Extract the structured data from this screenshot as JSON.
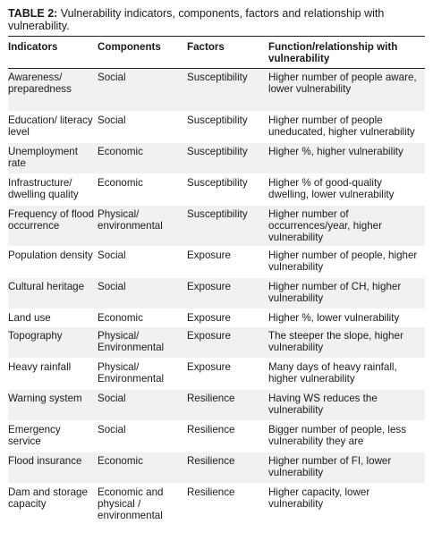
{
  "caption": {
    "label": "TABLE 2:",
    "text": " Vulnerability indicators, components, factors and relationship with vulnerability."
  },
  "headers": [
    "Indicators",
    "Components",
    "Factors",
    "Function/relationship with vulnerability"
  ],
  "rows": [
    {
      "indicator": "Awareness/ preparedness",
      "component": "Social",
      "factor": "Susceptibility",
      "relationship": "Higher number of people aware, lower vulnerability"
    },
    {
      "indicator": "Education/ literacy level",
      "component": "Social",
      "factor": "Susceptibility",
      "relationship": "Higher number of people uneducated, higher vulnerability"
    },
    {
      "indicator": "Unemployment rate",
      "component": "Economic",
      "factor": "Susceptibility",
      "relationship": "Higher %, higher vulnerability"
    },
    {
      "indicator": "Infrastructure/ dwelling quality",
      "component": "Economic",
      "factor": "Susceptibility",
      "relationship": "Higher % of good-quality dwelling, lower vulnerability"
    },
    {
      "indicator": "Frequency of flood occurrence",
      "component": "Physical/ environmental",
      "factor": "Susceptibility",
      "relationship": "Higher number of occurrences/year, higher vulnerability"
    },
    {
      "indicator": "Population density",
      "component": "Social",
      "factor": "Exposure",
      "relationship": "Higher number of people, higher vulnerability"
    },
    {
      "indicator": "Cultural heritage",
      "component": "Social",
      "factor": "Exposure",
      "relationship": "Higher number of CH, higher vulnerability"
    },
    {
      "indicator": "Land use",
      "component": "Economic",
      "factor": "Exposure",
      "relationship": "Higher %, lower vulnerability"
    },
    {
      "indicator": "Topography",
      "component": "Physical/ Environmental",
      "factor": "Exposure",
      "relationship": "The steeper the slope, higher vulnerability"
    },
    {
      "indicator": "Heavy rainfall",
      "component": "Physical/ Environmental",
      "factor": "Exposure",
      "relationship": "Many days of heavy rainfall, higher vulnerability"
    },
    {
      "indicator": "Warning system",
      "component": "Social",
      "factor": "Resilience",
      "relationship": "Having WS reduces the vulnerability"
    },
    {
      "indicator": "Emergency service",
      "component": "Social",
      "factor": "Resilience",
      "relationship": "Bigger number of people, less vulnerability they are"
    },
    {
      "indicator": "Flood insurance",
      "component": "Economic",
      "factor": "Resilience",
      "relationship": "Higher number of FI, lower vulnerability"
    },
    {
      "indicator": "Dam and storage capacity",
      "component": "Economic and physical / environmental",
      "factor": "Resilience",
      "relationship": "Higher capacity, lower vulnerability"
    }
  ]
}
